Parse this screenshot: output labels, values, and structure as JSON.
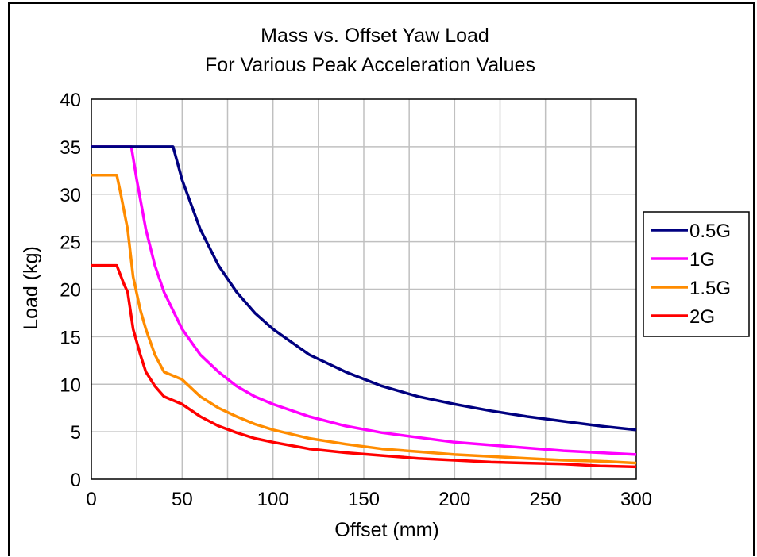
{
  "chart_data": {
    "type": "line",
    "title": "Mass vs. Offset Yaw Load",
    "subtitle": "For Various Peak Acceleration Values",
    "xlabel": "Offset (mm)",
    "ylabel": "Load (kg)",
    "xlim": [
      0,
      300
    ],
    "ylim": [
      0,
      40
    ],
    "xticks": [
      "0",
      "50",
      "100",
      "150",
      "200",
      "250",
      "300"
    ],
    "yticks": [
      "0",
      "5",
      "10",
      "15",
      "20",
      "25",
      "30",
      "35",
      "40"
    ],
    "grid": true,
    "legend_position": "right",
    "series": [
      {
        "name": "0.5G",
        "color": "#000080",
        "x": [
          0,
          10,
          20,
          30,
          40,
          45,
          50,
          60,
          70,
          80,
          90,
          100,
          120,
          140,
          160,
          180,
          200,
          220,
          240,
          260,
          280,
          300
        ],
        "y": [
          35,
          35,
          35,
          35,
          35,
          35,
          31.5,
          26.3,
          22.5,
          19.7,
          17.5,
          15.8,
          13.1,
          11.3,
          9.8,
          8.7,
          7.9,
          7.2,
          6.6,
          6.1,
          5.6,
          5.2
        ]
      },
      {
        "name": "1G",
        "color": "#ff00ff",
        "x": [
          0,
          10,
          20,
          22,
          25,
          30,
          35,
          40,
          50,
          60,
          70,
          80,
          90,
          100,
          120,
          140,
          160,
          180,
          200,
          220,
          240,
          260,
          280,
          300
        ],
        "y": [
          35,
          35,
          35,
          35,
          31.5,
          26.3,
          22.5,
          19.7,
          15.8,
          13.1,
          11.3,
          9.8,
          8.7,
          7.9,
          6.6,
          5.6,
          4.9,
          4.4,
          3.9,
          3.6,
          3.3,
          3.0,
          2.8,
          2.6
        ]
      },
      {
        "name": "1.5G",
        "color": "#ff8c00",
        "x": [
          0,
          10,
          14,
          16,
          20,
          23,
          27,
          30,
          35,
          40,
          50,
          60,
          70,
          80,
          90,
          100,
          120,
          140,
          160,
          180,
          200,
          220,
          240,
          260,
          280,
          300
        ],
        "y": [
          32,
          32,
          32,
          30.2,
          26.3,
          21.3,
          17.8,
          15.8,
          13.1,
          11.3,
          10.5,
          8.7,
          7.5,
          6.6,
          5.8,
          5.2,
          4.3,
          3.7,
          3.2,
          2.9,
          2.6,
          2.4,
          2.2,
          2.0,
          1.9,
          1.7
        ]
      },
      {
        "name": "2G",
        "color": "#ff0000",
        "x": [
          0,
          10,
          14,
          18,
          20,
          23,
          27,
          30,
          35,
          40,
          50,
          60,
          70,
          80,
          90,
          100,
          120,
          140,
          160,
          180,
          200,
          220,
          240,
          260,
          280,
          300
        ],
        "y": [
          22.5,
          22.5,
          22.5,
          20.5,
          19.7,
          15.8,
          13.1,
          11.3,
          9.8,
          8.7,
          7.9,
          6.6,
          5.6,
          4.9,
          4.3,
          3.9,
          3.2,
          2.8,
          2.5,
          2.2,
          2.0,
          1.8,
          1.7,
          1.6,
          1.4,
          1.3
        ]
      }
    ]
  }
}
